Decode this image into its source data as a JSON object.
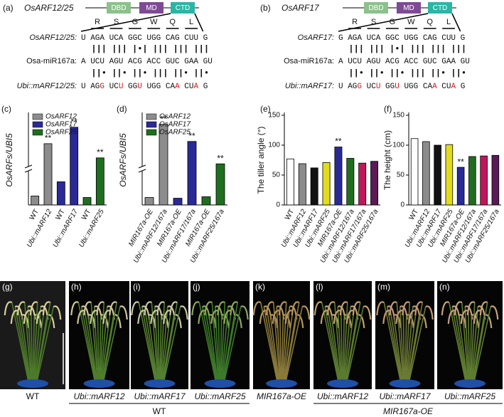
{
  "sequence_panels": [
    {
      "label": "(a)",
      "gene": "OsARF12/25",
      "domains": [
        "DBD",
        "MD",
        "CTD"
      ],
      "amino_acids": [
        "R",
        "S",
        "G",
        "W",
        "Q",
        "L"
      ],
      "target": {
        "name": "OsARF12/25:",
        "sequence": "U AGA UCA GGC UGG CAG CUU G"
      },
      "pairing_top": "  ||| ||| |•| ||| ||| |||",
      "mirna": {
        "name": "Osa-miR167a:",
        "sequence": "A UCU AGU ACG ACC GUC GAA GU"
      },
      "pairing_bottom": "  ||• ||• ||• ||| ||• ||•",
      "mutant": {
        "name": "Ubi::mARF12/25:",
        "segments": [
          {
            "text": "U AG"
          },
          {
            "text": "G",
            "mutated": true
          },
          {
            "text": " UC"
          },
          {
            "text": "U",
            "mutated": true
          },
          {
            "text": " GG"
          },
          {
            "text": "U",
            "mutated": true
          },
          {
            "text": " UGG CA"
          },
          {
            "text": "A",
            "mutated": true
          },
          {
            "text": " CU"
          },
          {
            "text": "A",
            "mutated": true
          },
          {
            "text": " G"
          }
        ]
      }
    },
    {
      "label": "(b)",
      "gene": "OsARF17",
      "domains": [
        "DBD",
        "MD",
        "CTD"
      ],
      "amino_acids": [
        "R",
        "S",
        "G",
        "W",
        "Q",
        "L"
      ],
      "target": {
        "name": "OsARF17:",
        "sequence": "G AGA UCA GGC UGG CAG CUU G"
      },
      "pairing_top": "  ||| ||| |•| ||| ||| |||",
      "mirna": {
        "name": "Osa-miR167a:",
        "sequence": "A UCU AGU ACG ACC GUC GAA GU"
      },
      "pairing_bottom": "  ||• ||• ||• ||| ||• ||•",
      "mutant": {
        "name": "Ubi::mARF17:",
        "segments": [
          {
            "text": "U AG"
          },
          {
            "text": "G",
            "mutated": true
          },
          {
            "text": " UC"
          },
          {
            "text": "U",
            "mutated": true
          },
          {
            "text": " GG"
          },
          {
            "text": "U",
            "mutated": true
          },
          {
            "text": " UGG CA"
          },
          {
            "text": "A",
            "mutated": true
          },
          {
            "text": " CU"
          },
          {
            "text": "A",
            "mutated": true
          },
          {
            "text": " G"
          }
        ]
      }
    }
  ],
  "chart_data": [
    {
      "label": "(c)",
      "type": "bar",
      "y_label": "OsARFs/UBI5",
      "axis_break": true,
      "ylim": [
        0,
        12
      ],
      "categories": [
        "WT",
        "Ubi::mARF12",
        "WT",
        "Ubi::mARF17",
        "WT",
        "Ubi::mARF25"
      ],
      "series": [
        {
          "name": "OsARF12",
          "color": "#8c8c8c",
          "values": [
            1.2,
            8.2,
            null,
            null,
            null,
            null
          ]
        },
        {
          "name": "OsARF17",
          "color": "#2a2a96",
          "values": [
            null,
            null,
            3.1,
            10.4,
            null,
            null
          ]
        },
        {
          "name": "OsARF25",
          "color": "#1f6e1f",
          "values": [
            null,
            null,
            null,
            null,
            1,
            6.3
          ]
        }
      ],
      "significance": [
        {
          "index": 1,
          "text": "**"
        },
        {
          "index": 3,
          "text": "**"
        },
        {
          "index": 5,
          "text": "**"
        }
      ]
    },
    {
      "label": "(d)",
      "type": "bar",
      "y_label": "OsARFs/UBI5",
      "axis_break": true,
      "ylim": [
        0,
        12
      ],
      "categories": [
        "MIR167a-OE",
        "Ubi::mARF12/167a",
        "MIR167a-OE",
        "Ubi::mARF17/167a",
        "MIR167a-OE",
        "Ubi::mARF25/167a"
      ],
      "series": [
        {
          "name": "OsARF12",
          "color": "#8c8c8c",
          "values": [
            1,
            10.8,
            null,
            null,
            null,
            null
          ]
        },
        {
          "name": "OsARF17",
          "color": "#2a2a96",
          "values": [
            null,
            null,
            0.9,
            8.5,
            null,
            null
          ]
        },
        {
          "name": "OsARF25",
          "color": "#1f6e1f",
          "values": [
            null,
            null,
            null,
            null,
            1.1,
            5.5
          ]
        }
      ],
      "significance": [
        {
          "index": 1,
          "text": "**"
        },
        {
          "index": 3,
          "text": "**"
        },
        {
          "index": 5,
          "text": "**"
        }
      ]
    },
    {
      "label": "(e)",
      "type": "bar",
      "y_label": "The tiller angle (°)",
      "ylim": [
        0,
        150
      ],
      "yticks": [
        0,
        50,
        100,
        150
      ],
      "categories": [
        "WT",
        "Ubi::mARF12",
        "Ubi::mARF17",
        "Ubi::mARF25",
        "MIR167a-OE",
        "Ubi::mARF12/167a",
        "Ubi::mARF17/167a",
        "Ubi::mARF25/167a"
      ],
      "values": [
        77,
        69,
        62,
        71,
        97,
        78,
        70,
        73
      ],
      "colors": [
        "#ffffff",
        "#8c8c8c",
        "#111111",
        "#e2dc1c",
        "#2a2a96",
        "#1f6e1f",
        "#c0175a",
        "#5a1a55"
      ],
      "significance": [
        {
          "index": 4,
          "text": "**"
        }
      ]
    },
    {
      "label": "(f)",
      "type": "bar",
      "y_label": "The height (cm)",
      "ylim": [
        0,
        150
      ],
      "yticks": [
        0,
        50,
        100,
        150
      ],
      "categories": [
        "WT",
        "Ubi::mARF12",
        "Ubi::mARF17",
        "Ubi::mARF25",
        "MIR167a-OE",
        "Ubi::mARF12/167a",
        "Ubi::mARF17/167a",
        "Ubi::mARF25/167a"
      ],
      "values": [
        111,
        106,
        100,
        101,
        63,
        81,
        82,
        83
      ],
      "colors": [
        "#ffffff",
        "#8c8c8c",
        "#111111",
        "#e2dc1c",
        "#2a2a96",
        "#1f6e1f",
        "#c0175a",
        "#5a1a55"
      ],
      "significance": [
        {
          "index": 4,
          "text": "**"
        }
      ]
    }
  ],
  "photo_panels": [
    {
      "label": "(g)",
      "caption": "WT"
    },
    {
      "label": "(h)",
      "caption": "Ubi::mARF12"
    },
    {
      "label": "(i)",
      "caption": "Ubi::mARF17"
    },
    {
      "label": "(j)",
      "caption": "Ubi::mARF25"
    },
    {
      "label": "(k)",
      "caption": "MIR167a-OE"
    },
    {
      "label": "(l)",
      "caption": "Ubi::mARF12"
    },
    {
      "label": "(m)",
      "caption": "Ubi::mARF17"
    },
    {
      "label": "(n)",
      "caption": "Ubi::mARF25"
    }
  ],
  "photo_groups": [
    {
      "label": "WT"
    },
    {
      "label": "MIR167a-OE"
    }
  ]
}
